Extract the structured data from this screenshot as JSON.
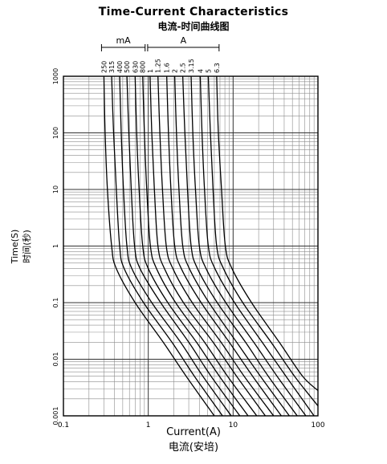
{
  "title": "Time-Current Characteristics",
  "subtitle": "电流-时间曲线图",
  "chart_data": {
    "type": "line",
    "title": "Time-Current Characteristics",
    "subtitle": "电流-时间曲线图",
    "xlabel": "Current(A)",
    "xlabel_cn": "电流(安培)",
    "ylabel": "Time(S)",
    "ylabel_cn": "时间(秒)",
    "x_scale": "log",
    "y_scale": "log",
    "xlim": [
      0.1,
      100
    ],
    "ylim": [
      0.001,
      1000
    ],
    "x_ticks": [
      "0.1",
      "1",
      "10",
      "100"
    ],
    "y_ticks": [
      "0.001",
      "0.01",
      "0.1",
      "1",
      "10",
      "100",
      "1000"
    ],
    "grid": true,
    "group_labels": [
      "mA",
      "A"
    ],
    "series": [
      {
        "name": "250",
        "values": [
          [
            0.3,
            1000
          ],
          [
            0.31,
            100
          ],
          [
            0.33,
            10
          ],
          [
            0.37,
            1
          ],
          [
            0.42,
            0.4
          ],
          [
            0.7,
            0.1
          ],
          [
            1.5,
            0.02
          ],
          [
            2.8,
            0.005
          ],
          [
            6.0,
            0.001
          ]
        ]
      },
      {
        "name": "315",
        "values": [
          [
            0.37,
            1000
          ],
          [
            0.39,
            100
          ],
          [
            0.42,
            10
          ],
          [
            0.46,
            1
          ],
          [
            0.52,
            0.4
          ],
          [
            0.88,
            0.1
          ],
          [
            1.9,
            0.02
          ],
          [
            3.5,
            0.005
          ],
          [
            7.5,
            0.001
          ]
        ]
      },
      {
        "name": "400",
        "values": [
          [
            0.46,
            1000
          ],
          [
            0.48,
            100
          ],
          [
            0.51,
            10
          ],
          [
            0.56,
            1
          ],
          [
            0.64,
            0.4
          ],
          [
            1.1,
            0.1
          ],
          [
            2.4,
            0.02
          ],
          [
            4.4,
            0.005
          ],
          [
            9.5,
            0.001
          ]
        ]
      },
      {
        "name": "500",
        "values": [
          [
            0.56,
            1000
          ],
          [
            0.59,
            100
          ],
          [
            0.63,
            10
          ],
          [
            0.69,
            1
          ],
          [
            0.8,
            0.4
          ],
          [
            1.4,
            0.1
          ],
          [
            3.0,
            0.02
          ],
          [
            5.5,
            0.005
          ],
          [
            12,
            0.001
          ]
        ]
      },
      {
        "name": "630",
        "values": [
          [
            0.7,
            1000
          ],
          [
            0.73,
            100
          ],
          [
            0.78,
            10
          ],
          [
            0.86,
            1
          ],
          [
            1.0,
            0.4
          ],
          [
            1.7,
            0.1
          ],
          [
            3.7,
            0.02
          ],
          [
            6.9,
            0.005
          ],
          [
            15,
            0.001
          ]
        ]
      },
      {
        "name": "800",
        "values": [
          [
            0.86,
            1000
          ],
          [
            0.9,
            100
          ],
          [
            0.96,
            10
          ],
          [
            1.06,
            1
          ],
          [
            1.25,
            0.4
          ],
          [
            2.1,
            0.1
          ],
          [
            4.6,
            0.02
          ],
          [
            8.6,
            0.005
          ],
          [
            19,
            0.001
          ]
        ]
      },
      {
        "name": "1",
        "values": [
          [
            1.05,
            1000
          ],
          [
            1.1,
            100
          ],
          [
            1.18,
            10
          ],
          [
            1.3,
            1
          ],
          [
            1.55,
            0.4
          ],
          [
            2.6,
            0.1
          ],
          [
            5.8,
            0.02
          ],
          [
            11,
            0.005
          ],
          [
            24,
            0.001
          ]
        ]
      },
      {
        "name": "1.25",
        "values": [
          [
            1.3,
            1000
          ],
          [
            1.37,
            100
          ],
          [
            1.47,
            10
          ],
          [
            1.63,
            1
          ],
          [
            1.95,
            0.4
          ],
          [
            3.3,
            0.1
          ],
          [
            7.2,
            0.02
          ],
          [
            13.5,
            0.005
          ],
          [
            30,
            0.001
          ]
        ]
      },
      {
        "name": "1.6",
        "values": [
          [
            1.65,
            1000
          ],
          [
            1.73,
            100
          ],
          [
            1.85,
            10
          ],
          [
            2.05,
            1
          ],
          [
            2.45,
            0.4
          ],
          [
            4.2,
            0.1
          ],
          [
            9.0,
            0.02
          ],
          [
            17,
            0.005
          ],
          [
            37,
            0.001
          ]
        ]
      },
      {
        "name": "2",
        "values": [
          [
            2.05,
            1000
          ],
          [
            2.15,
            100
          ],
          [
            2.3,
            10
          ],
          [
            2.55,
            1
          ],
          [
            3.05,
            0.4
          ],
          [
            5.2,
            0.1
          ],
          [
            11,
            0.02
          ],
          [
            21,
            0.005
          ],
          [
            46,
            0.001
          ]
        ]
      },
      {
        "name": "2.5",
        "values": [
          [
            2.55,
            1000
          ],
          [
            2.7,
            100
          ],
          [
            2.9,
            10
          ],
          [
            3.2,
            1
          ],
          [
            3.8,
            0.4
          ],
          [
            6.5,
            0.1
          ],
          [
            14,
            0.02
          ],
          [
            26,
            0.005
          ],
          [
            57,
            0.001
          ]
        ]
      },
      {
        "name": "3.15",
        "values": [
          [
            3.2,
            1000
          ],
          [
            3.35,
            100
          ],
          [
            3.6,
            10
          ],
          [
            4.0,
            1
          ],
          [
            4.8,
            0.4
          ],
          [
            8.2,
            0.1
          ],
          [
            17.5,
            0.02
          ],
          [
            33,
            0.005
          ],
          [
            72,
            0.001
          ]
        ]
      },
      {
        "name": "4",
        "values": [
          [
            4.1,
            1000
          ],
          [
            4.3,
            100
          ],
          [
            4.6,
            10
          ],
          [
            5.1,
            1
          ],
          [
            6.1,
            0.4
          ],
          [
            10.4,
            0.1
          ],
          [
            22,
            0.02
          ],
          [
            42,
            0.005
          ],
          [
            90,
            0.001
          ]
        ]
      },
      {
        "name": "5",
        "values": [
          [
            5.1,
            1000
          ],
          [
            5.4,
            100
          ],
          [
            5.8,
            10
          ],
          [
            6.4,
            1
          ],
          [
            7.7,
            0.4
          ],
          [
            13,
            0.1
          ],
          [
            28,
            0.02
          ],
          [
            53,
            0.005
          ],
          [
            100,
            0.0015
          ]
        ]
      },
      {
        "name": "6.3",
        "values": [
          [
            6.4,
            1000
          ],
          [
            6.7,
            100
          ],
          [
            7.3,
            10
          ],
          [
            8.1,
            1
          ],
          [
            9.7,
            0.4
          ],
          [
            16.5,
            0.1
          ],
          [
            35,
            0.02
          ],
          [
            66,
            0.005
          ],
          [
            100,
            0.0028
          ]
        ]
      }
    ]
  }
}
